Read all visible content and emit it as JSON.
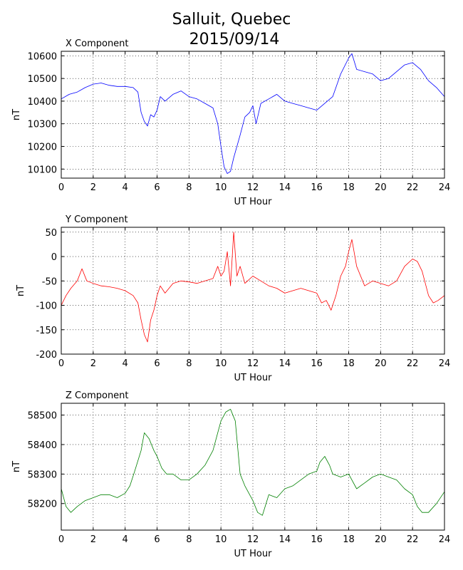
{
  "figure": {
    "title_line1": "Salluit, Quebec",
    "title_line2": "2015/09/14"
  },
  "chart_data": [
    {
      "type": "line",
      "title": "X Component",
      "xlabel": "UT Hour",
      "ylabel": "nT",
      "xlim": [
        0,
        24
      ],
      "ylim": [
        10060,
        10620
      ],
      "xticks": [
        0,
        2,
        4,
        6,
        8,
        10,
        12,
        14,
        16,
        18,
        20,
        22,
        24
      ],
      "yticks": [
        10100,
        10200,
        10300,
        10400,
        10500,
        10600
      ],
      "grid": true,
      "color": "#0000ff",
      "series": [
        {
          "x": [
            0,
            0.5,
            1,
            1.5,
            2,
            2.5,
            3,
            3.5,
            4,
            4.5,
            4.8,
            5,
            5.2,
            5.4,
            5.6,
            5.8,
            6,
            6.2,
            6.5,
            7,
            7.5,
            8,
            8.5,
            9,
            9.5,
            9.8,
            10,
            10.2,
            10.4,
            10.6,
            10.8,
            11,
            11.2,
            11.5,
            11.8,
            12,
            12.2,
            12.5,
            13,
            13.5,
            14,
            14.5,
            15,
            15.5,
            16,
            16.5,
            17,
            17.5,
            18,
            18.2,
            18.5,
            19,
            19.5,
            20,
            20.5,
            21,
            21.5,
            22,
            22.5,
            23,
            23.5,
            24
          ],
          "y": [
            10410,
            10430,
            10440,
            10460,
            10475,
            10480,
            10470,
            10465,
            10465,
            10460,
            10440,
            10350,
            10310,
            10290,
            10340,
            10330,
            10360,
            10420,
            10400,
            10430,
            10445,
            10420,
            10410,
            10390,
            10370,
            10300,
            10200,
            10110,
            10080,
            10090,
            10150,
            10200,
            10250,
            10330,
            10350,
            10380,
            10300,
            10390,
            10410,
            10430,
            10400,
            10390,
            10380,
            10370,
            10360,
            10390,
            10420,
            10520,
            10590,
            10610,
            10540,
            10530,
            10520,
            10490,
            10500,
            10530,
            10560,
            10570,
            10540,
            10490,
            10460,
            10420
          ]
        }
      ]
    },
    {
      "type": "line",
      "title": "Y Component",
      "xlabel": "UT Hour",
      "ylabel": "nT",
      "xlim": [
        0,
        24
      ],
      "ylim": [
        -200,
        60
      ],
      "xticks": [
        0,
        2,
        4,
        6,
        8,
        10,
        12,
        14,
        16,
        18,
        20,
        22,
        24
      ],
      "yticks": [
        -200,
        -150,
        -100,
        -50,
        0,
        50
      ],
      "grid": true,
      "color": "#ff0000",
      "series": [
        {
          "x": [
            0,
            0.3,
            0.6,
            1,
            1.3,
            1.6,
            2,
            2.5,
            3,
            3.5,
            4,
            4.5,
            4.8,
            5,
            5.2,
            5.4,
            5.6,
            5.8,
            6,
            6.2,
            6.5,
            7,
            7.5,
            8,
            8.5,
            9,
            9.5,
            9.8,
            10,
            10.2,
            10.4,
            10.6,
            10.8,
            11,
            11.2,
            11.5,
            12,
            12.5,
            13,
            13.5,
            14,
            14.5,
            15,
            15.5,
            16,
            16.3,
            16.6,
            16.9,
            17.2,
            17.5,
            17.8,
            18,
            18.2,
            18.5,
            19,
            19.5,
            20,
            20.5,
            21,
            21.5,
            22,
            22.3,
            22.6,
            23,
            23.3,
            23.6,
            24
          ],
          "y": [
            -100,
            -80,
            -65,
            -50,
            -25,
            -50,
            -55,
            -60,
            -62,
            -65,
            -70,
            -80,
            -95,
            -130,
            -160,
            -175,
            -130,
            -110,
            -80,
            -60,
            -75,
            -55,
            -50,
            -52,
            -55,
            -50,
            -45,
            -20,
            -40,
            -30,
            10,
            -60,
            50,
            -40,
            -20,
            -55,
            -40,
            -50,
            -60,
            -65,
            -75,
            -70,
            -65,
            -70,
            -75,
            -95,
            -90,
            -110,
            -80,
            -40,
            -20,
            10,
            35,
            -20,
            -60,
            -50,
            -55,
            -60,
            -50,
            -20,
            -5,
            -10,
            -30,
            -80,
            -95,
            -90,
            -80
          ]
        }
      ]
    },
    {
      "type": "line",
      "title": "Z Component",
      "xlabel": "UT Hour",
      "ylabel": "nT",
      "xlim": [
        0,
        24
      ],
      "ylim": [
        58110,
        58540
      ],
      "xticks": [
        0,
        2,
        4,
        6,
        8,
        10,
        12,
        14,
        16,
        18,
        20,
        22,
        24
      ],
      "yticks": [
        58200,
        58300,
        58400,
        58500
      ],
      "grid": true,
      "color": "#008000",
      "series": [
        {
          "x": [
            0,
            0.3,
            0.6,
            1,
            1.5,
            2,
            2.5,
            3,
            3.5,
            4,
            4.3,
            4.6,
            5,
            5.2,
            5.5,
            5.8,
            6,
            6.3,
            6.6,
            7,
            7.5,
            8,
            8.5,
            9,
            9.5,
            9.8,
            10,
            10.3,
            10.6,
            10.9,
            11.2,
            11.5,
            11.8,
            12,
            12.3,
            12.6,
            13,
            13.5,
            14,
            14.5,
            15,
            15.5,
            16,
            16.2,
            16.5,
            16.8,
            17,
            17.5,
            18,
            18.5,
            19,
            19.5,
            20,
            20.5,
            21,
            21.5,
            22,
            22.3,
            22.6,
            23,
            23.5,
            24
          ],
          "y": [
            58250,
            58190,
            58170,
            58190,
            58210,
            58220,
            58230,
            58230,
            58220,
            58235,
            58260,
            58310,
            58380,
            58440,
            58420,
            58380,
            58360,
            58320,
            58300,
            58300,
            58280,
            58280,
            58300,
            58330,
            58380,
            58440,
            58480,
            58510,
            58520,
            58480,
            58300,
            58260,
            58230,
            58210,
            58170,
            58160,
            58230,
            58220,
            58250,
            58260,
            58280,
            58300,
            58310,
            58340,
            58360,
            58330,
            58300,
            58290,
            58300,
            58250,
            58270,
            58290,
            58300,
            58290,
            58280,
            58250,
            58230,
            58190,
            58170,
            58170,
            58200,
            58240
          ]
        }
      ]
    }
  ]
}
